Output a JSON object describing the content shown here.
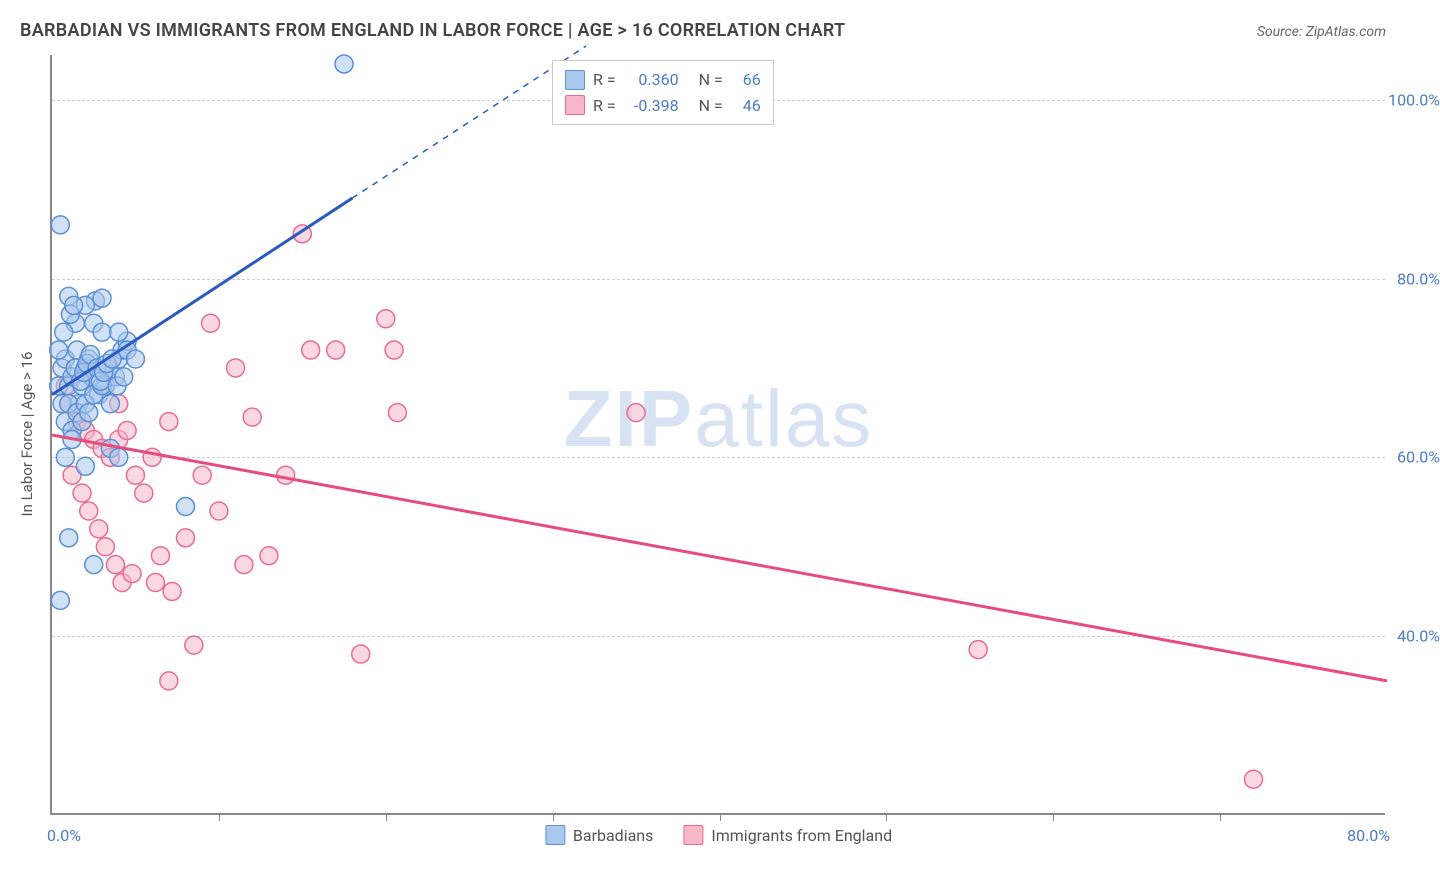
{
  "title": "BARBADIAN VS IMMIGRANTS FROM ENGLAND IN LABOR FORCE | AGE > 16 CORRELATION CHART",
  "source": "Source: ZipAtlas.com",
  "watermark_bold": "ZIP",
  "watermark_thin": "atlas",
  "y_axis_title": "In Labor Force | Age > 16",
  "x_axis": {
    "min": 0,
    "max": 80,
    "min_label": "0.0%",
    "max_label": "80.0%",
    "tick_positions": [
      10,
      20,
      30,
      40,
      50,
      60,
      70
    ]
  },
  "y_axis": {
    "min": 20,
    "max": 105,
    "gridlines": [
      {
        "v": 40,
        "label": "40.0%"
      },
      {
        "v": 60,
        "label": "60.0%"
      },
      {
        "v": 80,
        "label": "80.0%"
      },
      {
        "v": 100,
        "label": "100.0%"
      }
    ]
  },
  "series": [
    {
      "name": "Barbadians",
      "fill": "#a9c8ec",
      "stroke": "#5b8fd6",
      "fill_opacity": 0.55,
      "line_color": "#2a5bbd",
      "r_label": "R =",
      "r_value": "0.360",
      "n_label": "N =",
      "n_value": "66",
      "trend": {
        "x1": 0,
        "y1": 67,
        "x2_solid": 18,
        "y2_solid": 89,
        "x2_dash": 32,
        "y2_dash": 106
      },
      "points": [
        [
          0.5,
          86
        ],
        [
          0.4,
          68
        ],
        [
          0.6,
          70
        ],
        [
          0.8,
          71
        ],
        [
          1.0,
          68
        ],
        [
          1.2,
          69
        ],
        [
          1.4,
          70
        ],
        [
          1.5,
          72
        ],
        [
          1.6,
          66
        ],
        [
          1.8,
          68
        ],
        [
          2.0,
          70
        ],
        [
          2.2,
          71
        ],
        [
          2.4,
          69
        ],
        [
          2.5,
          75
        ],
        [
          2.6,
          77.5
        ],
        [
          2.8,
          67
        ],
        [
          3.0,
          77.8
        ],
        [
          3.2,
          68
        ],
        [
          3.4,
          70
        ],
        [
          3.5,
          66
        ],
        [
          3.8,
          69
        ],
        [
          4.0,
          71
        ],
        [
          4.2,
          72
        ],
        [
          4.5,
          73
        ],
        [
          1.0,
          78
        ],
        [
          2.0,
          77
        ],
        [
          0.8,
          64
        ],
        [
          1.2,
          63
        ],
        [
          1.4,
          75
        ],
        [
          3.0,
          74
        ],
        [
          4.0,
          74
        ],
        [
          4.5,
          72
        ],
        [
          5.0,
          71
        ],
        [
          0.6,
          66
        ],
        [
          1.0,
          66
        ],
        [
          1.5,
          65
        ],
        [
          2.0,
          66
        ],
        [
          2.5,
          67
        ],
        [
          3.0,
          68
        ],
        [
          0.5,
          44
        ],
        [
          1.0,
          51
        ],
        [
          2.0,
          59
        ],
        [
          2.5,
          48
        ],
        [
          3.5,
          61
        ],
        [
          4.0,
          60
        ],
        [
          8.0,
          54.5
        ],
        [
          0.8,
          60
        ],
        [
          1.2,
          62
        ],
        [
          1.8,
          64
        ],
        [
          2.2,
          65
        ],
        [
          0.4,
          72
        ],
        [
          0.7,
          74
        ],
        [
          1.1,
          76
        ],
        [
          1.3,
          77
        ],
        [
          1.7,
          68.5
        ],
        [
          1.9,
          69.5
        ],
        [
          2.1,
          70.5
        ],
        [
          2.3,
          71.5
        ],
        [
          2.7,
          70
        ],
        [
          2.9,
          68.5
        ],
        [
          3.1,
          69.5
        ],
        [
          3.3,
          70.5
        ],
        [
          3.6,
          71
        ],
        [
          3.9,
          68
        ],
        [
          4.3,
          69
        ],
        [
          17.5,
          104
        ]
      ]
    },
    {
      "name": "Immigrants from England",
      "fill": "#f5b7c9",
      "stroke": "#e66d94",
      "fill_opacity": 0.55,
      "line_color": "#e84b7d",
      "r_label": "R =",
      "r_value": "-0.398",
      "n_label": "N =",
      "n_value": "46",
      "trend": {
        "x1": 0,
        "y1": 62.5,
        "x2_solid": 80,
        "y2_solid": 35,
        "x2_dash": 80,
        "y2_dash": 35
      },
      "points": [
        [
          1.0,
          66
        ],
        [
          1.5,
          64
        ],
        [
          2.0,
          63
        ],
        [
          2.5,
          62
        ],
        [
          3.0,
          61
        ],
        [
          3.5,
          60
        ],
        [
          4.0,
          62
        ],
        [
          4.5,
          63
        ],
        [
          5.0,
          58
        ],
        [
          5.5,
          56
        ],
        [
          6.0,
          60
        ],
        [
          6.5,
          49
        ],
        [
          7.0,
          64
        ],
        [
          8.0,
          51
        ],
        [
          9.0,
          58
        ],
        [
          9.5,
          75
        ],
        [
          10.0,
          54
        ],
        [
          11.0,
          70
        ],
        [
          11.5,
          48
        ],
        [
          12.0,
          64.5
        ],
        [
          13.0,
          49
        ],
        [
          14.0,
          58
        ],
        [
          15.0,
          85
        ],
        [
          15.5,
          72
        ],
        [
          17.0,
          72
        ],
        [
          18.5,
          38
        ],
        [
          20.0,
          75.5
        ],
        [
          20.5,
          72
        ],
        [
          20.7,
          65
        ],
        [
          35.0,
          65
        ],
        [
          55.5,
          38.5
        ],
        [
          72.0,
          24
        ],
        [
          1.2,
          58
        ],
        [
          1.8,
          56
        ],
        [
          2.2,
          54
        ],
        [
          2.8,
          52
        ],
        [
          3.2,
          50
        ],
        [
          3.8,
          48
        ],
        [
          4.2,
          46
        ],
        [
          4.8,
          47
        ],
        [
          6.2,
          46
        ],
        [
          7.0,
          35
        ],
        [
          7.2,
          45
        ],
        [
          8.5,
          39
        ],
        [
          0.8,
          68
        ],
        [
          4.0,
          66
        ]
      ]
    }
  ],
  "marker_radius": 9,
  "marker_stroke_width": 1.5,
  "trend_stroke_width": 3,
  "grid_color": "#cccccc",
  "axis_color": "#888888",
  "tick_label_color": "#4a7bc8",
  "title_color": "#444444",
  "background_color": "#ffffff"
}
